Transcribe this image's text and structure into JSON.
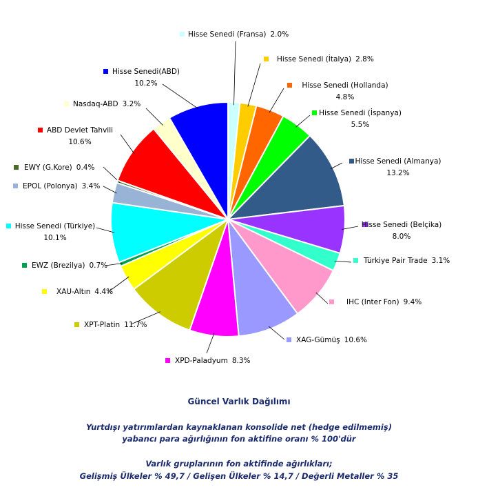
{
  "chart_data": {
    "type": "pie",
    "categories": [
      "Hisse Senedi (Fransa)",
      "Hisse Senedi (İtalya)",
      "Hisse Senedi (Hollanda)",
      "Hisse Senedi (İspanya)",
      "Hisse Senedi (Almanya)",
      "Hisse Senedi (Belçika)",
      "Türkiye Pair Trade",
      "IHC (Inter Fon)",
      "XAG-Gümüş",
      "XPD-Paladyum",
      "XPT-Platin",
      "XAU-Altın",
      "EWZ (Brezilya)",
      "Hisse Senedi (Türkiye)",
      "EPOL (Polonya)",
      "EWY (G.Kore)",
      "ABD Devlet Tahvili",
      "Nasdaq-ABD",
      "Hisse Senedi(ABD)"
    ],
    "values": [
      2.0,
      2.8,
      4.8,
      5.5,
      13.2,
      8.0,
      3.1,
      9.4,
      10.6,
      8.3,
      11.7,
      4.4,
      0.7,
      10.1,
      3.4,
      0.4,
      10.6,
      3.2,
      10.2
    ],
    "value_labels": [
      "2.0%",
      "2.8%",
      "4.8%",
      "5.5%",
      "13.2%",
      "8.0%",
      "3.1%",
      "9.4%",
      "10.6%",
      "8.3%",
      "11.7%",
      "4.4%",
      "0.7%",
      "10.1%",
      "3.4%",
      "0.4%",
      "10.6%",
      "3.2%",
      "10.2%"
    ],
    "colors": [
      "#ccffff",
      "#ffcc00",
      "#ff6600",
      "#00ff00",
      "#335b8a",
      "#9933ff",
      "#33ffcc",
      "#ff99cc",
      "#9999ff",
      "#ff00ff",
      "#cccc00",
      "#ffff00",
      "#00a050",
      "#00ffff",
      "#99b3d6",
      "#4a6a2a",
      "#ff0000",
      "#ffffcc",
      "#0000ff"
    ],
    "title": "Güncel  Varlık Dağılımı",
    "notes": [
      "Yurtdışı yatırımlardan kaynaklanan konsolide net (hedge edilmemiş)",
      "yabancı para ağırlığının fon aktifine oranı % 100'dür",
      "Varlık gruplarının fon aktifinde ağırlıkları;",
      "Gelişmiş Ülkeler % 49,7  / Gelişen Ülkeler % 14,7  / Değerli Metaller % 35"
    ]
  }
}
